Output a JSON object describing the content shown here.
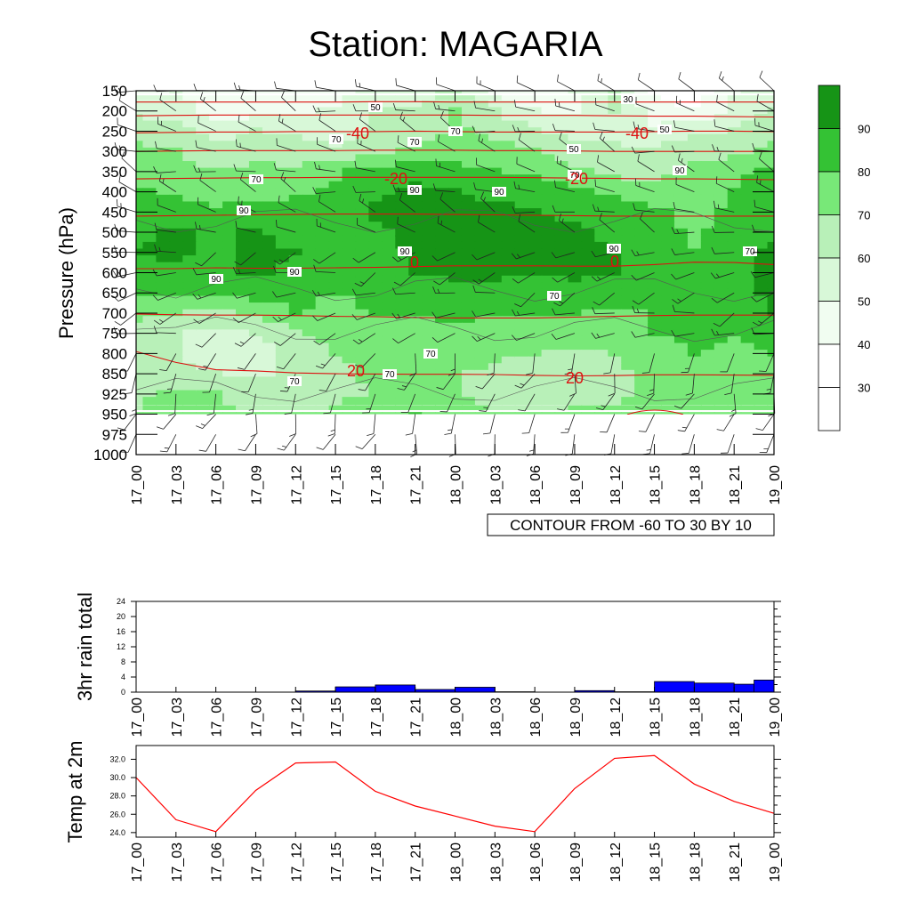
{
  "title": "Station: MAGARIA",
  "chart_data": [
    {
      "type": "contour",
      "name": "relative humidity / temperature cross-section",
      "ylabel": "Pressure (hPa)",
      "y_ticks": [
        "150",
        "200",
        "250",
        "300",
        "350",
        "400",
        "450",
        "500",
        "550",
        "600",
        "650",
        "700",
        "750",
        "800",
        "850",
        "925",
        "950",
        "975",
        "1000"
      ],
      "x_ticks": [
        "17_00",
        "17_03",
        "17_06",
        "17_09",
        "17_12",
        "17_15",
        "17_18",
        "17_21",
        "18_00",
        "18_03",
        "18_06",
        "18_09",
        "18_12",
        "18_15",
        "18_18",
        "18_21",
        "19_00"
      ],
      "info_label": "CONTOUR FROM -60 TO 30 BY 10",
      "colorbar_labels": [
        "30",
        "40",
        "50",
        "60",
        "70",
        "80",
        "90"
      ],
      "colorbar_colors": [
        "#ffffff",
        "#ffffff",
        "#f1fdf1",
        "#d8f8d8",
        "#b8f0b8",
        "#78e878",
        "#34c234",
        "#169416"
      ],
      "shading": {
        "levels": [
          40,
          50,
          60,
          70,
          80,
          90
        ],
        "rows": [
          "150",
          "200",
          "250",
          "300",
          "350",
          "400",
          "450",
          "500",
          "550",
          "600",
          "650",
          "700",
          "750",
          "800",
          "850",
          "925",
          "950"
        ],
        "values": [
          [
            48,
            50,
            45,
            40,
            40,
            45,
            55,
            52,
            65,
            48,
            40,
            50,
            60,
            38,
            35,
            48,
            55
          ],
          [
            58,
            55,
            45,
            45,
            48,
            52,
            60,
            60,
            70,
            60,
            50,
            48,
            60,
            45,
            40,
            55,
            62
          ],
          [
            66,
            64,
            55,
            60,
            58,
            55,
            62,
            65,
            72,
            68,
            62,
            55,
            58,
            52,
            56,
            60,
            68
          ],
          [
            72,
            70,
            65,
            68,
            64,
            62,
            66,
            72,
            74,
            72,
            72,
            65,
            62,
            62,
            68,
            66,
            72
          ],
          [
            75,
            72,
            70,
            72,
            72,
            78,
            84,
            86,
            84,
            80,
            78,
            72,
            66,
            68,
            72,
            78,
            82
          ],
          [
            82,
            78,
            75,
            74,
            78,
            82,
            88,
            92,
            90,
            88,
            86,
            82,
            78,
            72,
            74,
            80,
            84
          ],
          [
            86,
            84,
            82,
            86,
            84,
            86,
            91,
            93,
            93,
            92,
            90,
            88,
            86,
            82,
            76,
            82,
            86
          ],
          [
            88,
            92,
            88,
            91,
            86,
            86,
            88,
            93,
            94,
            93,
            93,
            91,
            88,
            84,
            78,
            84,
            88
          ],
          [
            90,
            92,
            88,
            92,
            90,
            80,
            84,
            92,
            95,
            94,
            93,
            92,
            90,
            86,
            80,
            86,
            92
          ],
          [
            86,
            88,
            86,
            92,
            88,
            82,
            86,
            90,
            92,
            92,
            91,
            92,
            90,
            86,
            84,
            86,
            92
          ],
          [
            80,
            80,
            82,
            84,
            82,
            80,
            82,
            84,
            86,
            86,
            86,
            86,
            84,
            82,
            84,
            86,
            92
          ],
          [
            72,
            70,
            66,
            72,
            80,
            78,
            80,
            80,
            82,
            80,
            80,
            80,
            78,
            80,
            84,
            82,
            90
          ],
          [
            68,
            60,
            58,
            60,
            68,
            74,
            74,
            76,
            78,
            76,
            76,
            74,
            74,
            80,
            82,
            80,
            84
          ],
          [
            64,
            60,
            56,
            56,
            62,
            70,
            72,
            74,
            74,
            72,
            70,
            68,
            70,
            76,
            80,
            78,
            80
          ],
          [
            64,
            62,
            60,
            58,
            62,
            68,
            72,
            72,
            70,
            68,
            66,
            64,
            68,
            72,
            76,
            76,
            78
          ],
          [
            68,
            72,
            70,
            66,
            64,
            68,
            70,
            72,
            70,
            66,
            64,
            66,
            68,
            72,
            74,
            72,
            72
          ],
          [
            70,
            75,
            72,
            70,
            70,
            72,
            76,
            80,
            76,
            70,
            70,
            72,
            72,
            76,
            78,
            74,
            70
          ]
        ]
      },
      "isotherms": [
        {
          "label": "-40",
          "values": [
            -40,
            -40,
            -40,
            -40,
            -40,
            -40,
            -40,
            -40,
            -40,
            -40,
            -40,
            -40,
            -40,
            -40,
            -40,
            -40,
            -40
          ],
          "pressures": [
            254,
            253,
            252,
            252,
            251,
            251,
            251,
            250,
            251,
            252,
            252,
            252,
            252,
            251,
            250,
            250,
            251
          ]
        },
        {
          "label": "",
          "values": [],
          "pressures": [
            178,
            178,
            178,
            178,
            178,
            178,
            177,
            177,
            178,
            178,
            178,
            178,
            178,
            178,
            178,
            178,
            178
          ]
        },
        {
          "label": "",
          "values": [],
          "pressures": [
            212,
            211,
            210,
            210,
            210,
            210,
            210,
            210,
            210,
            211,
            211,
            211,
            212,
            213,
            213,
            214,
            215
          ]
        },
        {
          "label": "",
          "values": [],
          "pressures": [
            300,
            299,
            298,
            298,
            298,
            298,
            297,
            297,
            297,
            298,
            298,
            299,
            300,
            300,
            300,
            300,
            300
          ]
        },
        {
          "label": "-20",
          "values": [],
          "pressures": [
            368,
            367,
            366,
            365,
            365,
            364,
            364,
            364,
            364,
            364,
            365,
            366,
            367,
            368,
            368,
            369,
            370
          ]
        },
        {
          "label": "",
          "values": [],
          "pressures": [
            460,
            459,
            458,
            457,
            456,
            455,
            455,
            455,
            456,
            457,
            458,
            459,
            460,
            460,
            460,
            460,
            460
          ]
        },
        {
          "label": "0",
          "values": [],
          "pressures": [
            590,
            590,
            588,
            589,
            589,
            588,
            587,
            585,
            583,
            583,
            583,
            584,
            584,
            580,
            574,
            575,
            580
          ]
        },
        {
          "label": "",
          "values": [],
          "pressures": [
            702,
            704,
            705,
            705,
            706,
            708,
            709,
            711,
            712,
            712,
            712,
            710,
            708,
            706,
            705,
            705,
            705
          ]
        },
        {
          "label": "20",
          "values": [],
          "pressures": [
            795,
            822,
            840,
            843,
            848,
            850,
            851,
            852,
            852,
            853,
            856,
            858,
            857,
            854,
            854,
            855,
            856
          ]
        }
      ],
      "contour_labels": [
        "50",
        "30",
        "70",
        "70",
        "50",
        "50",
        "70",
        "70",
        "90",
        "90",
        "90",
        "90",
        "90",
        "90",
        "90",
        "90",
        "70",
        "70",
        "70",
        "70",
        "70",
        "70"
      ],
      "temperature_labels": [
        "-40",
        "-40",
        "-20",
        "-20",
        "0",
        "0",
        "20",
        "20"
      ]
    },
    {
      "type": "bar",
      "ylabel": "3hr rain total",
      "ylim": [
        0,
        24
      ],
      "y_ticks": [
        "0",
        "4",
        "8",
        "12",
        "16",
        "20",
        "24"
      ],
      "categories": [
        "17_00",
        "17_03",
        "17_06",
        "17_09",
        "17_12",
        "17_15",
        "17_18",
        "17_21",
        "18_00",
        "18_03",
        "18_06",
        "18_09",
        "18_12",
        "18_15",
        "18_18",
        "18_21",
        "19_00"
      ],
      "values": [
        0,
        0,
        0,
        0,
        0.3,
        1.4,
        1.9,
        0.7,
        1.3,
        0.1,
        0,
        0.4,
        0.1,
        2.8,
        2.4,
        2.1,
        3.2
      ],
      "bar_color": "#0000ff"
    },
    {
      "type": "line",
      "ylabel": "Temp at 2m",
      "ylim": [
        23.5,
        33.5
      ],
      "y_ticks": [
        "24.0",
        "26.0",
        "28.0",
        "30.0",
        "32.0"
      ],
      "categories": [
        "17_00",
        "17_03",
        "17_06",
        "17_09",
        "17_12",
        "17_15",
        "17_18",
        "17_21",
        "18_00",
        "18_03",
        "18_06",
        "18_09",
        "18_12",
        "18_15",
        "18_18",
        "18_21",
        "19_00"
      ],
      "values": [
        30.0,
        25.4,
        24.1,
        28.6,
        31.6,
        31.7,
        28.5,
        26.9,
        25.8,
        24.7,
        24.1,
        28.8,
        32.1,
        32.4,
        29.3,
        27.4,
        26.1
      ],
      "line_color": "#ff0000"
    }
  ]
}
